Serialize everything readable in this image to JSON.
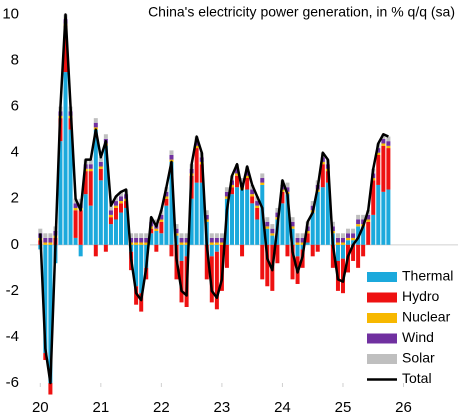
{
  "chart_data": {
    "type": "stacked_bar_line",
    "title": "China's electricity power generation, in % q/q (sa)",
    "x": [
      20,
      20.083,
      20.167,
      20.25,
      20.333,
      20.417,
      20.5,
      20.583,
      20.667,
      20.75,
      20.833,
      20.917,
      21,
      21.083,
      21.167,
      21.25,
      21.333,
      21.417,
      21.5,
      21.583,
      21.667,
      21.75,
      21.833,
      21.917,
      22,
      22.083,
      22.167,
      22.25,
      22.333,
      22.417,
      22.5,
      22.583,
      22.667,
      22.75,
      22.833,
      22.917,
      23,
      23.083,
      23.167,
      23.25,
      23.333,
      23.417,
      23.5,
      23.583,
      23.667,
      23.75,
      23.833,
      23.917,
      24,
      24.083,
      24.167,
      24.25,
      24.333,
      24.417,
      24.5,
      24.583,
      24.667,
      24.75,
      24.833,
      24.917,
      25,
      25.083,
      25.167,
      25.25,
      25.333,
      25.417,
      25.5,
      25.583,
      25.667,
      25.75
    ],
    "series": [
      {
        "name": "Thermal",
        "color": "#1ba9dc",
        "values": [
          -0.2,
          -4.7,
          -6,
          -0.8,
          4.5,
          7.5,
          5,
          0.3,
          -0.5,
          2.2,
          1.7,
          5,
          2.8,
          4.3,
          0.9,
          1.1,
          1.4,
          1.6,
          -0.3,
          -1.8,
          -2.1,
          -1,
          0.5,
          0.6,
          0.5,
          1.7,
          3.6,
          0.4,
          -0.7,
          -0.5,
          2,
          2.7,
          2.7,
          1,
          -0.5,
          -0.3,
          0,
          2,
          2.2,
          2.5,
          2.4,
          2.4,
          1.8,
          1.1,
          2.6,
          0.7,
          0.4,
          1.1,
          1.8,
          2.2,
          0.7,
          -0.5,
          -0.2,
          0.1,
          1.4,
          2.3,
          2.5,
          2.7,
          0.5,
          -0.7,
          -0.6,
          0.2,
          0.2,
          0.8,
          0.8,
          0,
          1.3,
          2.6,
          2.3,
          2.4
        ]
      },
      {
        "name": "Hydro",
        "color": "#ee1111",
        "values": [
          0.2,
          -0.3,
          -0.5,
          0.3,
          1,
          2,
          0.5,
          1.2,
          1.5,
          1,
          1.5,
          -0.5,
          0.5,
          -0.3,
          0.3,
          0.5,
          0.4,
          0.3,
          -0.8,
          -0.8,
          -0.8,
          -0.5,
          0.2,
          -0.3,
          0.5,
          0.3,
          -0.5,
          -1.5,
          -1.8,
          -2.2,
          1,
          1.5,
          0.8,
          -1.5,
          -2,
          -2.5,
          -2,
          -1,
          0.3,
          0.5,
          -0.5,
          0.5,
          0.3,
          0.5,
          -1.5,
          -1.8,
          -2,
          -0.8,
          0.5,
          -0.5,
          -1.5,
          -1.2,
          -0.8,
          0.4,
          -0.5,
          -0.3,
          1,
          0.5,
          -1,
          -1.3,
          -1.5,
          -1.2,
          -0.7,
          -1,
          -0.5,
          1,
          1.5,
          1.3,
          2,
          1.8
        ]
      },
      {
        "name": "Nuclear",
        "color": "#f7b800",
        "values": [
          0.1,
          0.1,
          0.1,
          0.1,
          0.1,
          0.1,
          0.1,
          0.1,
          0.1,
          0.1,
          0.1,
          0.1,
          0.1,
          0.1,
          0.1,
          0.1,
          0.1,
          0.1,
          0.1,
          0.1,
          0.1,
          0.1,
          0.1,
          0.1,
          0.1,
          0.1,
          0.1,
          0.1,
          0.1,
          0.1,
          0.1,
          0.1,
          0.1,
          0.1,
          0.1,
          0.1,
          0.1,
          0.1,
          0.1,
          0.1,
          0.1,
          0.1,
          0.1,
          0.1,
          0.1,
          0.1,
          0.1,
          0.1,
          0.1,
          0.1,
          0.1,
          0.1,
          0.1,
          0.1,
          0.1,
          0.1,
          0.1,
          0.1,
          0.1,
          0.1,
          0.1,
          0.1,
          0.1,
          0.1,
          0.1,
          0.1,
          0.1,
          0.1,
          0.1,
          0.1
        ]
      },
      {
        "name": "Wind",
        "color": "#7030a0",
        "values": [
          0.2,
          0.2,
          0.2,
          0.2,
          0.2,
          0.2,
          0.2,
          0.2,
          0.2,
          0.2,
          0.2,
          0.2,
          0.2,
          0.2,
          0.2,
          0.2,
          0.2,
          0.2,
          0.2,
          0.2,
          0.2,
          0.2,
          0.2,
          0.2,
          0.2,
          0.2,
          0.2,
          0.2,
          0.2,
          0.2,
          0.2,
          0.2,
          0.2,
          0.2,
          0.2,
          0.2,
          0.2,
          0.2,
          0.2,
          0.2,
          0.2,
          0.2,
          0.2,
          0.2,
          0.2,
          0.2,
          0.2,
          0.2,
          0.2,
          0.2,
          0.2,
          0.2,
          0.2,
          0.2,
          0.2,
          0.2,
          0.2,
          0.2,
          0.2,
          0.2,
          0.2,
          0.2,
          0.2,
          0.2,
          0.2,
          0.2,
          0.2,
          0.2,
          0.2,
          0.2
        ]
      },
      {
        "name": "Solar",
        "color": "#bfbfbf",
        "values": [
          0.2,
          0.2,
          0.2,
          0.2,
          0.2,
          0.2,
          0.2,
          0.2,
          0.2,
          0.2,
          0.2,
          0.2,
          0.2,
          0.2,
          0.2,
          0.2,
          0.2,
          0.2,
          0.2,
          0.2,
          0.2,
          0.2,
          0.2,
          0.2,
          0.2,
          0.2,
          0.2,
          0.2,
          0.2,
          0.2,
          0.2,
          0.2,
          0.2,
          0.2,
          0.2,
          0.2,
          0.2,
          0.2,
          0.2,
          0.2,
          0.2,
          0.2,
          0.2,
          0.2,
          0.2,
          0.2,
          0.2,
          0.2,
          0.2,
          0.2,
          0.2,
          0.2,
          0.2,
          0.2,
          0.2,
          0.2,
          0.2,
          0.2,
          0.2,
          0.2,
          0.2,
          0.2,
          0.2,
          0.2,
          0.2,
          0.2,
          0.2,
          0.2,
          0.2,
          0.2
        ]
      }
    ],
    "line": {
      "name": "Total",
      "color": "#000000",
      "values": [
        0.5,
        -4.5,
        -6,
        0,
        6,
        10,
        6,
        2,
        1.5,
        3.7,
        3.7,
        5,
        3.8,
        4.5,
        1.7,
        2.1,
        2.3,
        2.4,
        -0.6,
        -2.1,
        -2.4,
        -1,
        1.2,
        0.8,
        1.5,
        2.5,
        3.6,
        -0.6,
        -2,
        -2.2,
        3.5,
        4.7,
        4,
        0,
        -2,
        -2.3,
        -1.5,
        1.5,
        3,
        3.5,
        2.4,
        3.4,
        2.6,
        2.1,
        1.6,
        -0.6,
        -1.1,
        0.8,
        2.8,
        2.2,
        -0.3,
        -1.2,
        -0.5,
        1,
        1.4,
        2.5,
        4,
        3.7,
        0,
        -1.5,
        -1.6,
        -0.5,
        0,
        0.3,
        0.8,
        1.5,
        3.3,
        4.4,
        4.8,
        4.7
      ]
    },
    "xlim": [
      19.83,
      26.9
    ],
    "xticks": [
      20,
      21,
      22,
      23,
      24,
      25,
      26
    ],
    "ylim": [
      -6,
      10
    ],
    "yticks": [
      -6,
      -4,
      -2,
      0,
      2,
      4,
      6,
      8,
      10
    ],
    "legend": "lower right"
  }
}
